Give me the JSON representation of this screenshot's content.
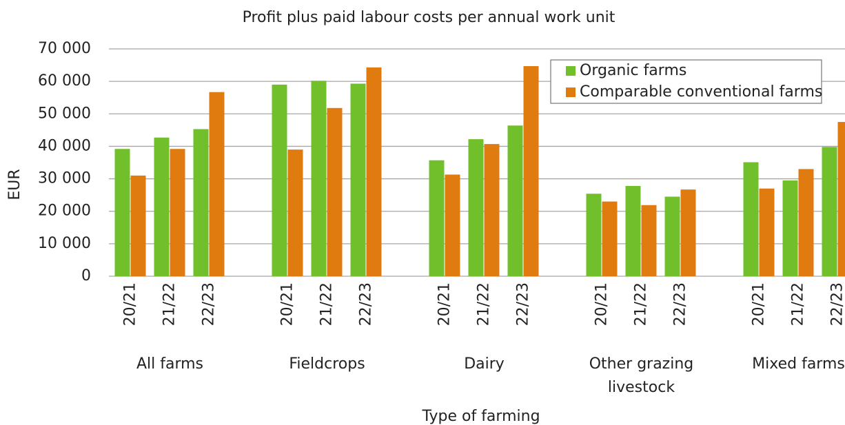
{
  "chart_data": {
    "type": "bar",
    "title": "Profit plus paid labour costs per annual work unit",
    "y_label": "EUR",
    "x_label": "Type of farming",
    "groups": [
      "All farms",
      "Fieldcrops",
      "Dairy",
      "Other grazing livestock",
      "Mixed farms"
    ],
    "categories": [
      "20/21",
      "21/22",
      "22/23",
      "20/21",
      "21/22",
      "22/23",
      "20/21",
      "21/22",
      "22/23",
      "20/21",
      "21/22",
      "22/23",
      "20/21",
      "21/22",
      "22/23"
    ],
    "series": [
      {
        "name": "Organic farms",
        "color": "#72bf2c",
        "values": [
          39200,
          42700,
          45300,
          59000,
          60200,
          59300,
          35700,
          42200,
          46400,
          25400,
          27800,
          24500,
          35100,
          29500,
          39800
        ]
      },
      {
        "name": "Comparable conventional farms",
        "color": "#e07b10",
        "values": [
          31000,
          39200,
          56700,
          39000,
          51800,
          64300,
          31300,
          40700,
          64700,
          23000,
          21900,
          26700,
          27000,
          33000,
          47500
        ]
      }
    ],
    "ylim": [
      0,
      70000
    ],
    "yticks": [
      0,
      {
        "value": 10000,
        "label": "10 000"
      },
      {
        "value": 20000,
        "label": "20 000"
      },
      {
        "value": 30000,
        "label": "30 000"
      },
      {
        "value": 40000,
        "label": "40 000"
      },
      {
        "value": 50000,
        "label": "50 000"
      },
      {
        "value": 60000,
        "label": "60 000"
      },
      {
        "value": 70000,
        "label": "70 000"
      }
    ],
    "grid": true,
    "legend": "top-right"
  }
}
